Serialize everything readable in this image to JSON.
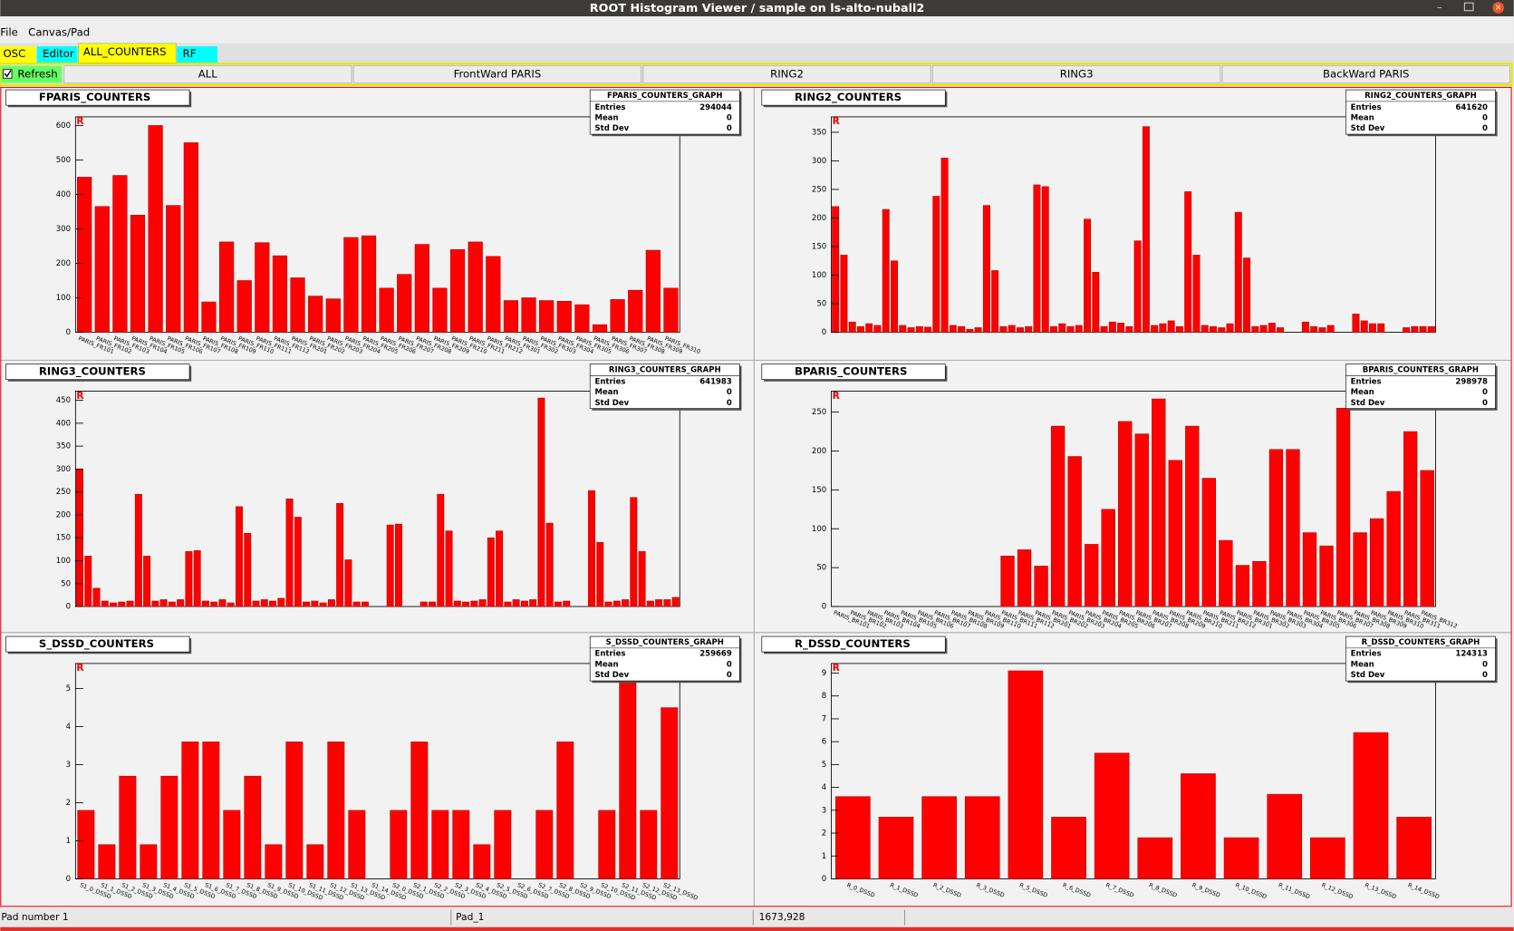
{
  "window": {
    "title": "ROOT Histogram Viewer / sample on ls-alto-nuball2"
  },
  "menu": [
    "File",
    "Canvas/Pad"
  ],
  "tabs": [
    "OSC",
    "Editor",
    "ALL_COUNTERS",
    "RF"
  ],
  "refresh": "Refresh",
  "buttons": [
    "ALL",
    "FrontWard PARIS",
    "RING2",
    "RING3",
    "BackWard PARIS"
  ],
  "status": [
    "Pad number 1",
    "Pad_1",
    "1673,928"
  ],
  "chart_data": [
    {
      "type": "bar",
      "title": "FPARIS_COUNTERS",
      "color": "#ff0000",
      "categories": [
        "PARIS_FR101",
        "PARIS_FR102",
        "PARIS_FR103",
        "PARIS_FR104",
        "PARIS_FR105",
        "PARIS_FR106",
        "PARIS_FR107",
        "PARIS_FR108",
        "PARIS_FR109",
        "PARIS_FR110",
        "PARIS_FR111",
        "PARIS_FR112",
        "PARIS_FR201",
        "PARIS_FR202",
        "PARIS_FR203",
        "PARIS_FR204",
        "PARIS_FR205",
        "PARIS_FR206",
        "PARIS_FR207",
        "PARIS_FR208",
        "PARIS_FR209",
        "PARIS_FR210",
        "PARIS_FR211",
        "PARIS_FR212",
        "PARIS_FR301",
        "PARIS_FR302",
        "PARIS_FR303",
        "PARIS_FR304",
        "PARIS_FR305",
        "PARIS_FR306",
        "PARIS_FR307",
        "PARIS_FR308",
        "PARIS_FR309",
        "PARIS_FR310"
      ],
      "values": [
        450,
        365,
        455,
        340,
        600,
        368,
        550,
        88,
        262,
        150,
        260,
        222,
        158,
        105,
        97,
        275,
        280,
        128,
        168,
        255,
        128,
        240,
        262,
        220,
        92,
        100,
        92,
        90,
        80,
        22,
        95,
        122,
        238,
        128
      ],
      "ylim": [
        0,
        625
      ],
      "yticks": [
        0,
        100,
        200,
        300,
        400,
        500,
        600
      ],
      "stats": {
        "title": "FPARIS_COUNTERS_GRAPH",
        "labels": [
          "Entries",
          "Mean",
          "Std Dev"
        ],
        "values": [
          294044,
          0,
          0
        ]
      }
    },
    {
      "type": "bar",
      "title": "RING2_COUNTERS",
      "color": "#ff0000",
      "categories": [
        null,
        null,
        null,
        null,
        null,
        null,
        null,
        null,
        null,
        null,
        null,
        null,
        null,
        null,
        null,
        null,
        null,
        null,
        null,
        null,
        null,
        null,
        null,
        null,
        null,
        null,
        null,
        null,
        null,
        null,
        null,
        null,
        null,
        null,
        null,
        null,
        null,
        null,
        null,
        null,
        null,
        null,
        null,
        null,
        null,
        null,
        null,
        null,
        null,
        null,
        null,
        null,
        null,
        null,
        null,
        null,
        null,
        null,
        null,
        null,
        null,
        null,
        null,
        null,
        null,
        null,
        null,
        null,
        null,
        null,
        null,
        null
      ],
      "values": [
        220,
        135,
        18,
        10,
        15,
        12,
        215,
        125,
        12,
        8,
        10,
        9,
        238,
        305,
        12,
        10,
        5,
        8,
        222,
        108,
        10,
        12,
        8,
        10,
        258,
        255,
        10,
        15,
        10,
        12,
        198,
        105,
        10,
        18,
        16,
        10,
        160,
        360,
        12,
        15,
        20,
        10,
        246,
        135,
        12,
        10,
        8,
        15,
        210,
        130,
        10,
        12,
        16,
        8,
        0,
        0,
        18,
        10,
        8,
        12,
        0,
        0,
        32,
        20,
        15,
        15,
        0,
        0,
        8,
        10,
        10,
        10
      ],
      "ylim": [
        0,
        377
      ],
      "yticks": [
        0,
        50,
        100,
        150,
        200,
        250,
        300,
        350
      ],
      "stats": {
        "title": "RING2_COUNTERS_GRAPH",
        "labels": [
          "Entries",
          "Mean",
          "Std Dev"
        ],
        "values": [
          641620,
          0,
          0
        ]
      }
    },
    {
      "type": "bar",
      "title": "RING3_COUNTERS",
      "color": "#ff0000",
      "categories": [
        null,
        null,
        null,
        null,
        null,
        null,
        null,
        null,
        null,
        null,
        null,
        null,
        null,
        null,
        null,
        null,
        null,
        null,
        null,
        null,
        null,
        null,
        null,
        null,
        null,
        null,
        null,
        null,
        null,
        null,
        null,
        null,
        null,
        null,
        null,
        null,
        null,
        null,
        null,
        null,
        null,
        null,
        null,
        null,
        null,
        null,
        null,
        null,
        null,
        null,
        null,
        null,
        null,
        null,
        null,
        null,
        null,
        null,
        null,
        null,
        null,
        null,
        null,
        null,
        null,
        null,
        null,
        null,
        null,
        null,
        null,
        null
      ],
      "values": [
        300,
        110,
        40,
        12,
        8,
        10,
        12,
        245,
        110,
        12,
        15,
        10,
        15,
        120,
        122,
        12,
        10,
        15,
        8,
        218,
        160,
        12,
        15,
        12,
        18,
        235,
        195,
        10,
        12,
        8,
        15,
        225,
        102,
        10,
        10,
        0,
        0,
        178,
        180,
        0,
        0,
        10,
        10,
        245,
        165,
        12,
        10,
        12,
        15,
        150,
        165,
        10,
        15,
        12,
        15,
        455,
        182,
        10,
        12,
        0,
        0,
        253,
        140,
        10,
        12,
        15,
        238,
        120,
        12,
        15,
        15,
        20
      ],
      "ylim": [
        0,
        470
      ],
      "yticks": [
        0,
        50,
        100,
        150,
        200,
        250,
        300,
        350,
        400,
        450
      ],
      "stats": {
        "title": "RING3_COUNTERS_GRAPH",
        "labels": [
          "Entries",
          "Mean",
          "Std Dev"
        ],
        "values": [
          641983,
          0,
          0
        ]
      }
    },
    {
      "type": "bar",
      "title": "BPARIS_COUNTERS",
      "color": "#ff0000",
      "categories": [
        "PARIS_BR101",
        "PARIS_BR102",
        "PARIS_BR103",
        "PARIS_BR104",
        "PARIS_BR105",
        "PARIS_BR106",
        "PARIS_BR107",
        "PARIS_BR108",
        "PARIS_BR109",
        "PARIS_BR110",
        "PARIS_BR111",
        "PARIS_BR112",
        "PARIS_BR201",
        "PARIS_BR202",
        "PARIS_BR203",
        "PARIS_BR204",
        "PARIS_BR205",
        "PARIS_BR206",
        "PARIS_BR207",
        "PARIS_BR208",
        "PARIS_BR209",
        "PARIS_BR210",
        "PARIS_BR211",
        "PARIS_BR212",
        "PARIS_BR301",
        "PARIS_BR302",
        "PARIS_BR303",
        "PARIS_BR304",
        "PARIS_BR305",
        "PARIS_BR306",
        "PARIS_BR307",
        "PARIS_BR308",
        "PARIS_BR309",
        "PARIS_BR310",
        "PARIS_BR311",
        "PARIS_BR312"
      ],
      "values": [
        0,
        0,
        0,
        0,
        0,
        0,
        0,
        0,
        0,
        0,
        65,
        73,
        52,
        232,
        193,
        80,
        125,
        238,
        222,
        267,
        188,
        232,
        165,
        85,
        53,
        58,
        202,
        202,
        95,
        78,
        255,
        95,
        113,
        148,
        225,
        175
      ],
      "ylim": [
        0,
        277
      ],
      "yticks": [
        0,
        50,
        100,
        150,
        200,
        250
      ],
      "stats": {
        "title": "BPARIS_COUNTERS_GRAPH",
        "labels": [
          "Entries",
          "Mean",
          "Std Dev"
        ],
        "values": [
          298978,
          0,
          0
        ]
      }
    },
    {
      "type": "bar",
      "title": "S_DSSD_COUNTERS",
      "color": "#ff0000",
      "categories": [
        "S1_0_DSSD",
        "S1_1_DSSD",
        "S1_2_DSSD",
        "S1_3_DSSD",
        "S1_4_DSSD",
        "S1_5_DSSD",
        "S1_6_DSSD",
        "S1_7_DSSD",
        "S1_8_DSSD",
        "S1_9_DSSD",
        "S1_10_DSSD",
        "S1_11_DSSD",
        "S1_12_DSSD",
        "S1_13_DSSD",
        "S1_14_DSSD",
        "S2_0_DSSD",
        "S2_1_DSSD",
        "S2_2_DSSD",
        "S2_3_DSSD",
        "S2_4_DSSD",
        "S2_5_DSSD",
        "S2_6_DSSD",
        "S2_7_DSSD",
        "S2_8_DSSD",
        "S2_9_DSSD",
        "S2_10_DSSD",
        "S2_11_DSSD",
        "S2_12_DSSD",
        "S2_13_DSSD"
      ],
      "values": [
        1.8,
        0.9,
        2.7,
        0.9,
        2.7,
        3.6,
        3.6,
        1.8,
        2.7,
        0.9,
        3.6,
        0.9,
        3.6,
        1.8,
        0,
        1.8,
        3.6,
        1.8,
        1.8,
        0.9,
        1.8,
        0,
        1.8,
        3.6,
        0,
        1.8,
        5.6,
        1.8,
        4.5
      ],
      "ylim": [
        0,
        5.66
      ],
      "yticks": [
        0,
        1,
        2,
        3,
        4,
        5
      ],
      "stats": {
        "title": "S_DSSD_COUNTERS_GRAPH",
        "labels": [
          "Entries",
          "Mean",
          "Std Dev"
        ],
        "values": [
          259669,
          0,
          0
        ]
      }
    },
    {
      "type": "bar",
      "title": "R_DSSD_COUNTERS",
      "color": "#ff0000",
      "categories": [
        "R_0_DSSD",
        "R_1_DSSD",
        "R_2_DSSD",
        "R_3_DSSD",
        "R_5_DSSD",
        "R_6_DSSD",
        "R_7_DSSD",
        "R_8_DSSD",
        "R_9_DSSD",
        "R_10_DSSD",
        "R_11_DSSD",
        "R_12_DSSD",
        "R_13_DSSD",
        "R_14_DSSD"
      ],
      "values": [
        3.6,
        2.7,
        3.6,
        3.6,
        9.1,
        2.7,
        5.5,
        1.8,
        4.6,
        1.8,
        3.7,
        1.8,
        6.4,
        2.7
      ],
      "ylim": [
        0,
        9.42
      ],
      "yticks": [
        0,
        1,
        2,
        3,
        4,
        5,
        6,
        7,
        8,
        9
      ],
      "stats": {
        "title": "R_DSSD_COUNTERS_GRAPH",
        "labels": [
          "Entries",
          "Mean",
          "Std Dev"
        ],
        "values": [
          124313,
          0,
          0
        ]
      }
    }
  ]
}
